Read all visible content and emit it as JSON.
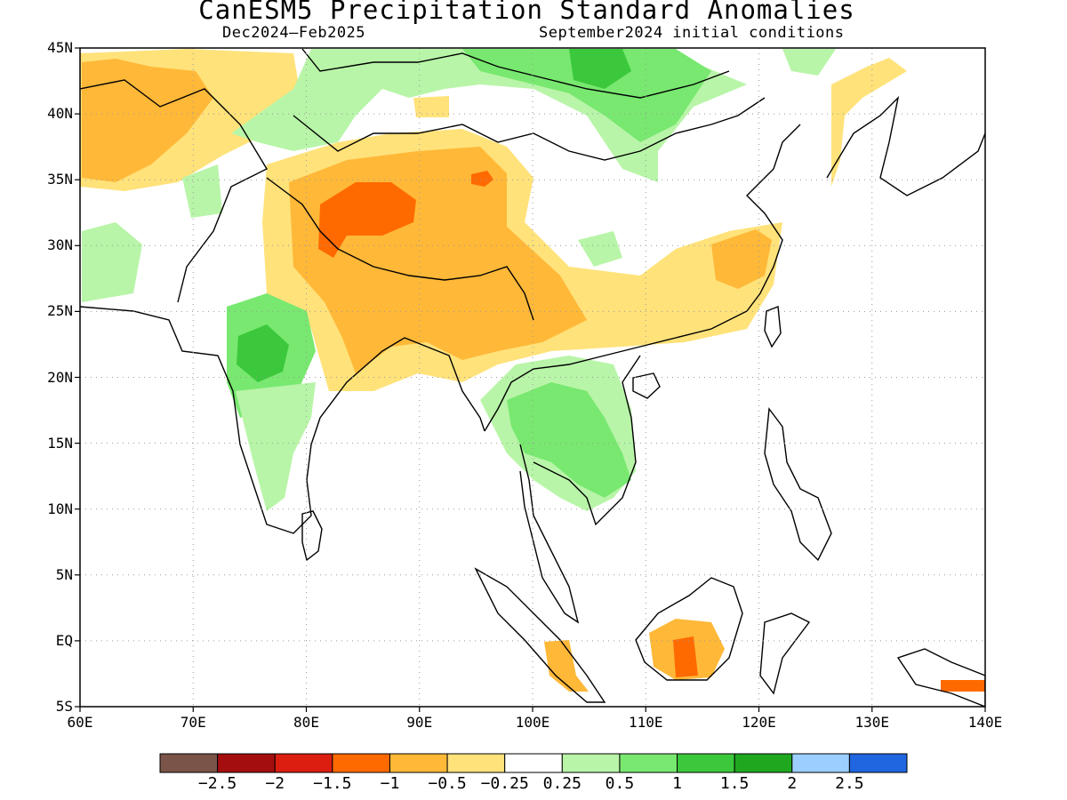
{
  "title": "CanESM5 Precipitation Standard Anomalies",
  "subtitle_left": "Dec2024–Feb2025",
  "subtitle_right": "September2024 initial conditions",
  "map": {
    "lon_range": [
      60,
      140
    ],
    "lat_range": [
      -5,
      45
    ],
    "lon_ticks": [
      "60E",
      "70E",
      "80E",
      "90E",
      "100E",
      "110E",
      "120E",
      "130E",
      "140E"
    ],
    "lat_ticks": [
      "45N",
      "40N",
      "35N",
      "30N",
      "25N",
      "20N",
      "15N",
      "10N",
      "5N",
      "EQ",
      "5S"
    ],
    "gridlines": true,
    "gridline_style": "dotted"
  },
  "colorbar": {
    "colors": [
      "#7a5448",
      "#a50e0e",
      "#dc1e10",
      "#ff6a00",
      "#ffb838",
      "#ffe27a",
      "#ffffff",
      "#b8f5a8",
      "#78e870",
      "#3cc83c",
      "#1fa81f",
      "#9ccfff",
      "#1f66e0"
    ],
    "labels": [
      "−2.5",
      "−2",
      "−1.5",
      "−1",
      "−0.5",
      "−0.25",
      "0.25",
      "0.5",
      "1",
      "1.5",
      "2",
      "2.5"
    ]
  }
}
